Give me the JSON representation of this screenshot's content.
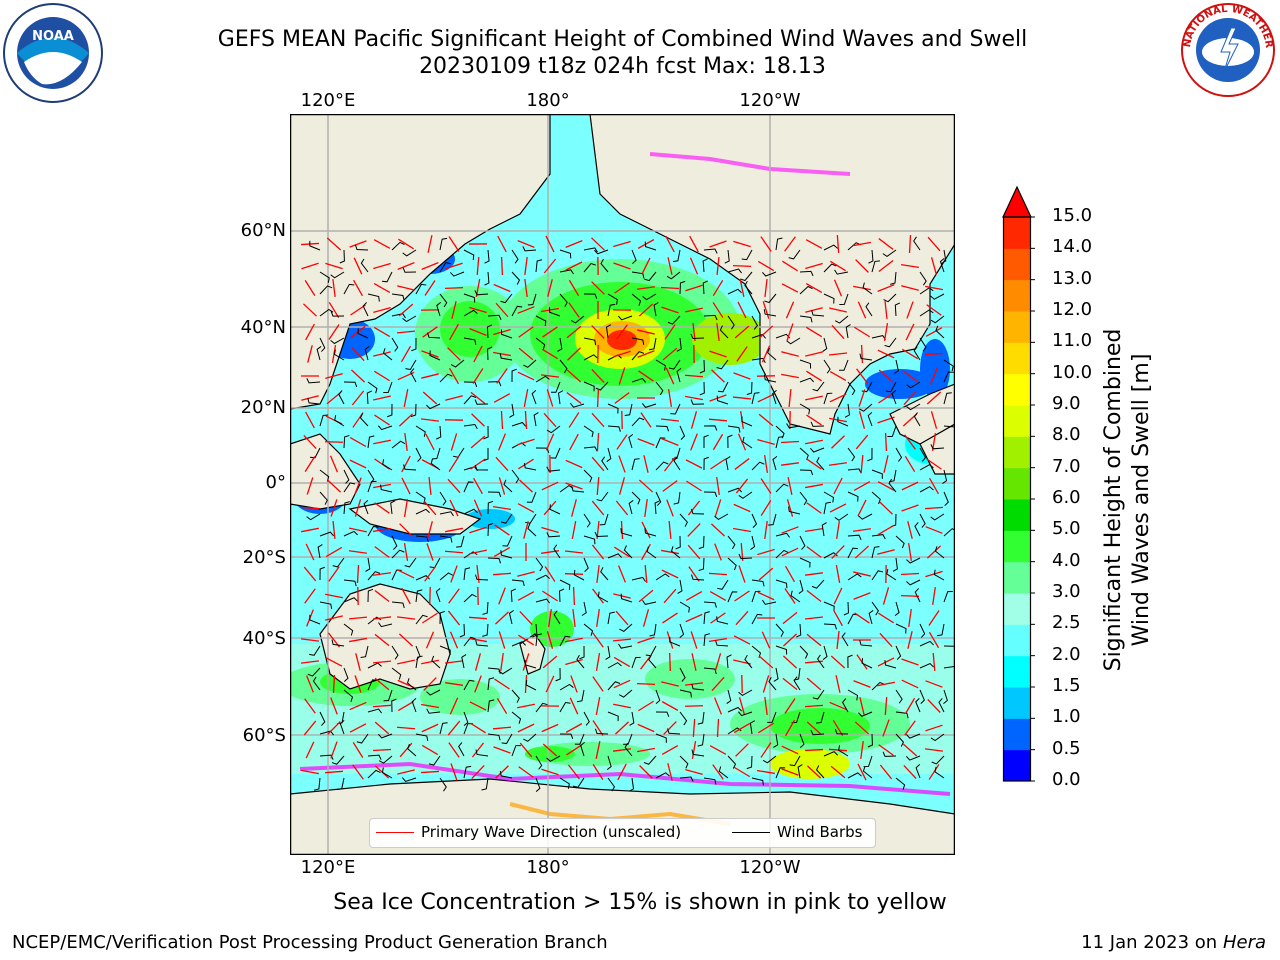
{
  "title_line1": "GEFS MEAN Pacific Significant Height of Combined Wind Waves and Swell",
  "title_line2": "20230109 t18z 024h fcst   Max: 18.13",
  "lon_labels_top": [
    "120°E",
    "180°",
    "120°W"
  ],
  "lon_labels_bottom": [
    "120°E",
    "180°",
    "120°W"
  ],
  "lat_labels": [
    "60°N",
    "40°N",
    "20°N",
    "0°",
    "20°S",
    "40°S",
    "60°S"
  ],
  "colorbar": {
    "title_line1": "Significant Height of Combined",
    "title_line2": "Wind Waves and Swell [m]",
    "levels": [
      "0.0",
      "0.5",
      "1.0",
      "1.5",
      "2.0",
      "2.5",
      "3.0",
      "4.0",
      "5.0",
      "6.0",
      "7.0",
      "8.0",
      "9.0",
      "10.0",
      "11.0",
      "12.0",
      "13.0",
      "14.0",
      "15.0"
    ],
    "colors": [
      "#0000ff",
      "#0064ff",
      "#00c8ff",
      "#00ffff",
      "#64ffff",
      "#a0ffe6",
      "#64ff96",
      "#32ff32",
      "#00dc00",
      "#64e600",
      "#a0f000",
      "#dcff00",
      "#ffff00",
      "#ffdc00",
      "#ffb400",
      "#ff8c00",
      "#ff5a00",
      "#ff2800",
      "#ff0000"
    ]
  },
  "legend": {
    "wave_direction_label": "Primary Wave Direction (unscaled)",
    "wind_barbs_label": "Wind Barbs"
  },
  "note": "Sea Ice Concentration > 15% is shown in pink to yellow",
  "footer_left": "NCEP/EMC/Verification Post Processing Product Generation Branch",
  "footer_right_date": "11 Jan 2023 on",
  "footer_right_host": "Hera",
  "logos": {
    "noaa_text": "NOAA",
    "nws_text": "NATIONAL WEATHER SERVICE"
  },
  "map_colors": {
    "land": "#efedde",
    "ocean_base": "#7cffff",
    "grid": "#b0b0b0"
  }
}
